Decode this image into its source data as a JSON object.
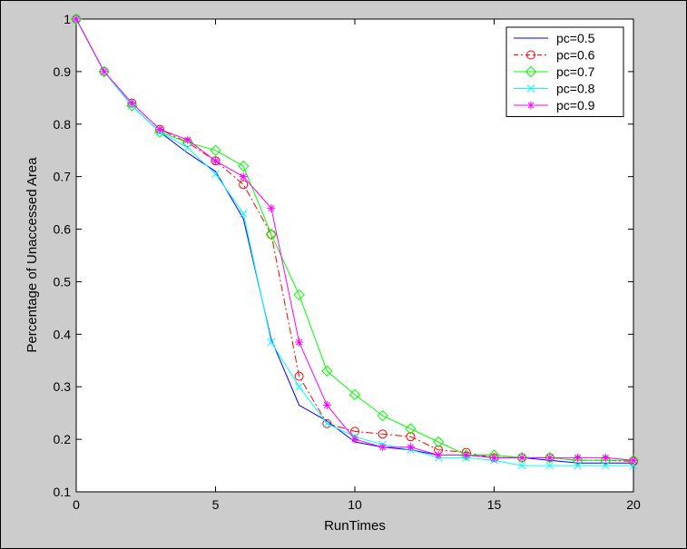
{
  "chart_data": {
    "type": "line",
    "title": "",
    "xlabel": "RunTimes",
    "ylabel": "Percentage of Unaccessed Area",
    "xlim": [
      0,
      20
    ],
    "ylim": [
      0.1,
      1
    ],
    "xticks": [
      0,
      5,
      10,
      15,
      20
    ],
    "yticks": [
      0.1,
      0.2,
      0.3,
      0.4,
      0.5,
      0.6,
      0.7,
      0.8,
      0.9,
      1
    ],
    "xtick_labels": [
      "0",
      "5",
      "10",
      "15",
      "20"
    ],
    "ytick_labels": [
      "0.1",
      "0.2",
      "0.3",
      "0.4",
      "0.5",
      "0.6",
      "0.7",
      "0.8",
      "0.9",
      "1"
    ],
    "grid": false,
    "legend_position": "top-right",
    "x": [
      0,
      1,
      2,
      3,
      4,
      5,
      6,
      7,
      8,
      9,
      10,
      11,
      12,
      13,
      14,
      15,
      16,
      17,
      18,
      19,
      20
    ],
    "series": [
      {
        "name": "pc=0.5",
        "color": "#0000ff",
        "dash": "solid",
        "marker": "none",
        "values": [
          1.0,
          0.9,
          0.835,
          0.785,
          0.745,
          0.71,
          0.62,
          0.39,
          0.265,
          0.235,
          0.195,
          0.185,
          0.18,
          0.17,
          0.17,
          0.165,
          0.165,
          0.16,
          0.155,
          0.155,
          0.155
        ]
      },
      {
        "name": "pc=0.6",
        "color": "#ff0000",
        "dash": "dashdot",
        "marker": "circle",
        "values": [
          1.0,
          0.9,
          0.84,
          0.79,
          0.765,
          0.73,
          0.685,
          0.59,
          0.32,
          0.23,
          0.215,
          0.21,
          0.205,
          0.18,
          0.175,
          0.165,
          0.165,
          0.165,
          0.16,
          0.16,
          0.158
        ]
      },
      {
        "name": "pc=0.7",
        "color": "#00ff00",
        "dash": "solid",
        "marker": "diamond",
        "values": [
          1.0,
          0.9,
          0.835,
          0.785,
          0.765,
          0.75,
          0.72,
          0.59,
          0.475,
          0.33,
          0.285,
          0.245,
          0.22,
          0.195,
          0.17,
          0.17,
          0.165,
          0.165,
          0.16,
          0.16,
          0.16
        ]
      },
      {
        "name": "pc=0.8",
        "color": "#00ffff",
        "dash": "solid",
        "marker": "x",
        "values": [
          1.0,
          0.9,
          0.835,
          0.785,
          0.755,
          0.705,
          0.63,
          0.385,
          0.3,
          0.23,
          0.205,
          0.19,
          0.18,
          0.165,
          0.165,
          0.16,
          0.15,
          0.15,
          0.15,
          0.15,
          0.15
        ]
      },
      {
        "name": "pc=0.9",
        "color": "#ff00ff",
        "dash": "solid",
        "marker": "star",
        "values": [
          1.0,
          0.9,
          0.84,
          0.79,
          0.77,
          0.73,
          0.7,
          0.64,
          0.385,
          0.265,
          0.2,
          0.185,
          0.185,
          0.17,
          0.17,
          0.165,
          0.165,
          0.165,
          0.165,
          0.165,
          0.16
        ]
      }
    ]
  }
}
